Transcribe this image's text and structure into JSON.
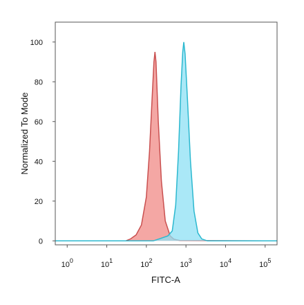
{
  "chart_data": {
    "type": "area",
    "xlabel": "FITC-A",
    "ylabel": "Normalized To Mode",
    "x_scale": "log",
    "xlim": [
      0.5,
      200000
    ],
    "ylim": [
      -2,
      110
    ],
    "x_ticks": [
      {
        "value": 1,
        "base": "10",
        "exp": "0"
      },
      {
        "value": 10,
        "base": "10",
        "exp": "1"
      },
      {
        "value": 100,
        "base": "10",
        "exp": "2"
      },
      {
        "value": 1000,
        "base": "10",
        "exp": "3"
      },
      {
        "value": 10000,
        "base": "10",
        "exp": "4"
      },
      {
        "value": 100000,
        "base": "10",
        "exp": "5"
      }
    ],
    "y_ticks": [
      0,
      20,
      40,
      60,
      80,
      100
    ],
    "grid": false,
    "series": [
      {
        "color_fill": "#f08a86",
        "color_line": "#c94f4f",
        "points": [
          [
            0.5,
            0
          ],
          [
            30,
            0
          ],
          [
            40,
            1
          ],
          [
            55,
            3
          ],
          [
            75,
            8
          ],
          [
            100,
            22
          ],
          [
            120,
            45
          ],
          [
            140,
            72
          ],
          [
            155,
            90
          ],
          [
            165,
            95
          ],
          [
            175,
            90
          ],
          [
            200,
            60
          ],
          [
            240,
            30
          ],
          [
            300,
            10
          ],
          [
            400,
            2.5
          ],
          [
            500,
            0.8
          ],
          [
            700,
            0.2
          ],
          [
            200000,
            0
          ]
        ]
      },
      {
        "color_fill": "#8ee0f4",
        "color_line": "#2bb8cf",
        "points": [
          [
            0.5,
            0
          ],
          [
            150,
            0
          ],
          [
            250,
            1.5
          ],
          [
            350,
            2.5
          ],
          [
            450,
            5
          ],
          [
            550,
            18
          ],
          [
            650,
            45
          ],
          [
            750,
            78
          ],
          [
            830,
            95
          ],
          [
            880,
            100
          ],
          [
            950,
            94
          ],
          [
            1100,
            70
          ],
          [
            1300,
            40
          ],
          [
            1600,
            15
          ],
          [
            2000,
            4
          ],
          [
            2500,
            1
          ],
          [
            3500,
            0
          ],
          [
            200000,
            0
          ]
        ]
      }
    ]
  }
}
